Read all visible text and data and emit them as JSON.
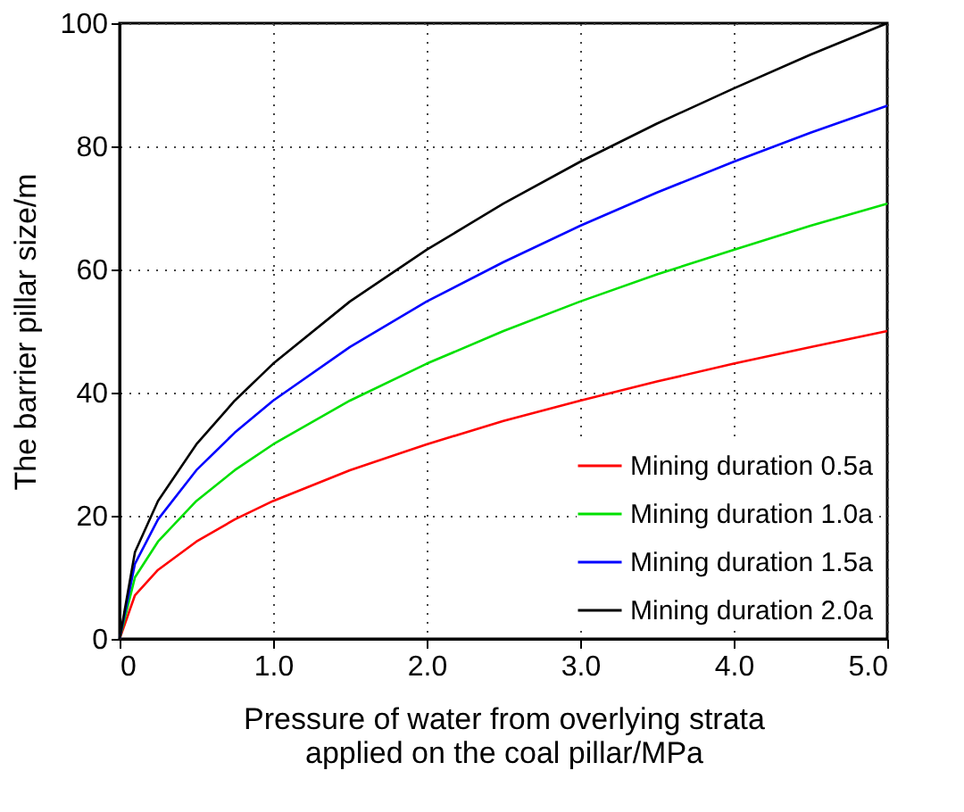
{
  "chart_data": {
    "type": "line",
    "xlabel": "Pressure of water from overlying strata applied on the coal pillar/MPa",
    "ylabel": "The barrier pillar size/m",
    "x": [
      0,
      0.1,
      0.25,
      0.5,
      0.75,
      1,
      1.5,
      2,
      2.5,
      3,
      3.5,
      4,
      4.5,
      5
    ],
    "series": [
      {
        "name": "Mining duration 0.5a",
        "color": "#ff0000",
        "values": [
          0,
          7.1,
          11.2,
          15.8,
          19.4,
          22.4,
          27.4,
          31.6,
          35.4,
          38.7,
          41.8,
          44.7,
          47.4,
          50
        ]
      },
      {
        "name": "Mining duration 1.0a",
        "color": "#00e000",
        "values": [
          0,
          10,
          15.8,
          22.4,
          27.4,
          31.6,
          38.7,
          44.7,
          50,
          54.8,
          59.2,
          63.2,
          67.1,
          70.7
        ]
      },
      {
        "name": "Mining duration 1.5a",
        "color": "#0000ff",
        "values": [
          0,
          12.2,
          19.4,
          27.4,
          33.5,
          38.7,
          47.4,
          54.8,
          61.2,
          67.1,
          72.5,
          77.5,
          82.2,
          86.6
        ]
      },
      {
        "name": "Mining duration 2.0a",
        "color": "#000000",
        "values": [
          0,
          14.1,
          22.4,
          31.6,
          38.7,
          44.7,
          54.8,
          63.2,
          70.7,
          77.5,
          83.7,
          89.4,
          94.9,
          100
        ]
      }
    ],
    "xlim": [
      0,
      5
    ],
    "xticks": [
      0,
      {
        "value": 1,
        "label": "1.0"
      },
      {
        "value": 2,
        "label": "2.0"
      },
      {
        "value": 3,
        "label": "3.0"
      },
      {
        "value": 4,
        "label": "4.0"
      },
      {
        "value": 5,
        "label": "5.0"
      }
    ],
    "ylim": [
      0,
      100
    ],
    "yticks": [
      0,
      20,
      40,
      60,
      80,
      100
    ],
    "grid": true,
    "legend": "bottom right",
    "marker": "none",
    "line_style": "solid"
  }
}
